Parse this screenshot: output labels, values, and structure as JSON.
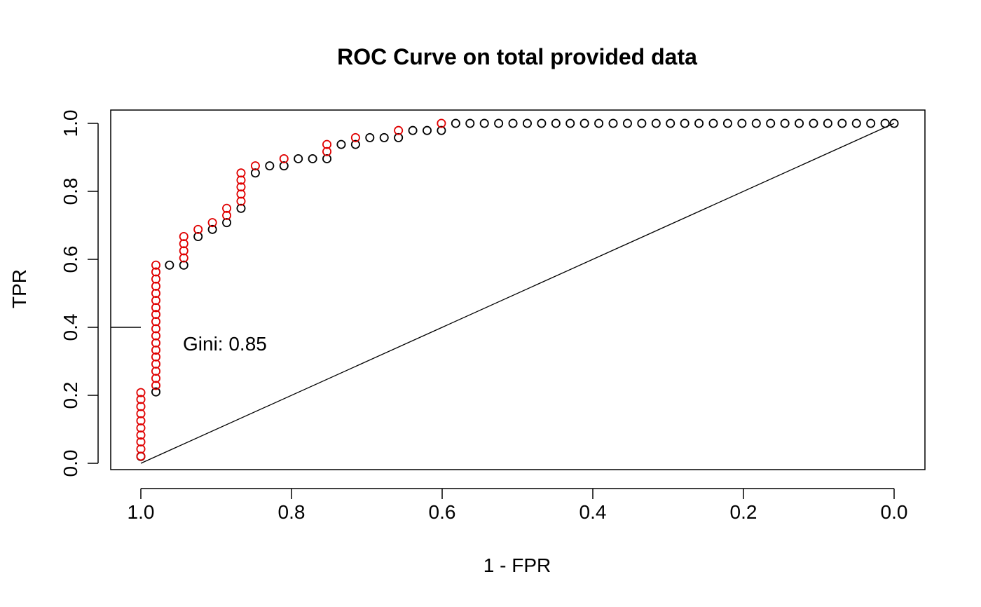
{
  "chart_data": {
    "type": "scatter",
    "title": "ROC Curve on total provided data",
    "xlabel": "1 - FPR",
    "ylabel": "TPR",
    "xlim": [
      1.0,
      0.0
    ],
    "ylim": [
      0.0,
      1.0
    ],
    "x_ticks": [
      "1.0",
      "0.8",
      "0.6",
      "0.4",
      "0.2",
      "0.0"
    ],
    "y_ticks": [
      "0.0",
      "0.2",
      "0.4",
      "0.6",
      "0.8",
      "1.0"
    ],
    "grid": false,
    "legend": "none",
    "annotation": "Gini: 0.85",
    "annotation_tick_at": 0.4,
    "colors": {
      "primary": "#000000",
      "highlight": "#e00000"
    },
    "diagonal": [
      [
        1.0,
        0.0
      ],
      [
        0.0,
        1.0
      ]
    ],
    "series": [
      {
        "color": "#000000",
        "points": [
          [
            1.0,
            0.02
          ],
          [
            0.98,
            0.21
          ],
          [
            0.962,
            0.583
          ],
          [
            0.943,
            0.583
          ],
          [
            0.924,
            0.667
          ],
          [
            0.905,
            0.688
          ],
          [
            0.886,
            0.708
          ],
          [
            0.867,
            0.75
          ],
          [
            0.848,
            0.854
          ],
          [
            0.829,
            0.875
          ],
          [
            0.81,
            0.875
          ],
          [
            0.791,
            0.896
          ],
          [
            0.772,
            0.896
          ],
          [
            0.753,
            0.896
          ],
          [
            0.734,
            0.938
          ],
          [
            0.715,
            0.938
          ],
          [
            0.696,
            0.958
          ],
          [
            0.677,
            0.958
          ],
          [
            0.658,
            0.958
          ],
          [
            0.639,
            0.979
          ],
          [
            0.62,
            0.979
          ],
          [
            0.601,
            0.979
          ],
          [
            0.582,
            1.0
          ],
          [
            0.563,
            1.0
          ],
          [
            0.544,
            1.0
          ],
          [
            0.525,
            1.0
          ],
          [
            0.506,
            1.0
          ],
          [
            0.487,
            1.0
          ],
          [
            0.468,
            1.0
          ],
          [
            0.449,
            1.0
          ],
          [
            0.43,
            1.0
          ],
          [
            0.411,
            1.0
          ],
          [
            0.392,
            1.0
          ],
          [
            0.373,
            1.0
          ],
          [
            0.354,
            1.0
          ],
          [
            0.335,
            1.0
          ],
          [
            0.316,
            1.0
          ],
          [
            0.297,
            1.0
          ],
          [
            0.278,
            1.0
          ],
          [
            0.259,
            1.0
          ],
          [
            0.24,
            1.0
          ],
          [
            0.221,
            1.0
          ],
          [
            0.202,
            1.0
          ],
          [
            0.183,
            1.0
          ],
          [
            0.164,
            1.0
          ],
          [
            0.145,
            1.0
          ],
          [
            0.126,
            1.0
          ],
          [
            0.107,
            1.0
          ],
          [
            0.088,
            1.0
          ],
          [
            0.069,
            1.0
          ],
          [
            0.05,
            1.0
          ],
          [
            0.031,
            1.0
          ],
          [
            0.012,
            1.0
          ],
          [
            0.0,
            1.0
          ]
        ]
      },
      {
        "color": "#e00000",
        "points": [
          [
            1.0,
            0.021
          ],
          [
            1.0,
            0.042
          ],
          [
            1.0,
            0.063
          ],
          [
            1.0,
            0.083
          ],
          [
            1.0,
            0.104
          ],
          [
            1.0,
            0.125
          ],
          [
            1.0,
            0.146
          ],
          [
            1.0,
            0.167
          ],
          [
            1.0,
            0.188
          ],
          [
            1.0,
            0.208
          ],
          [
            0.98,
            0.229
          ],
          [
            0.98,
            0.25
          ],
          [
            0.98,
            0.271
          ],
          [
            0.98,
            0.292
          ],
          [
            0.98,
            0.313
          ],
          [
            0.98,
            0.333
          ],
          [
            0.98,
            0.354
          ],
          [
            0.98,
            0.375
          ],
          [
            0.98,
            0.396
          ],
          [
            0.98,
            0.417
          ],
          [
            0.98,
            0.438
          ],
          [
            0.98,
            0.458
          ],
          [
            0.98,
            0.479
          ],
          [
            0.98,
            0.5
          ],
          [
            0.98,
            0.521
          ],
          [
            0.98,
            0.542
          ],
          [
            0.98,
            0.563
          ],
          [
            0.98,
            0.583
          ],
          [
            0.943,
            0.604
          ],
          [
            0.943,
            0.625
          ],
          [
            0.943,
            0.646
          ],
          [
            0.943,
            0.667
          ],
          [
            0.924,
            0.688
          ],
          [
            0.905,
            0.708
          ],
          [
            0.886,
            0.729
          ],
          [
            0.886,
            0.75
          ],
          [
            0.867,
            0.771
          ],
          [
            0.867,
            0.792
          ],
          [
            0.867,
            0.813
          ],
          [
            0.867,
            0.833
          ],
          [
            0.867,
            0.854
          ],
          [
            0.848,
            0.875
          ],
          [
            0.81,
            0.896
          ],
          [
            0.753,
            0.917
          ],
          [
            0.753,
            0.938
          ],
          [
            0.715,
            0.958
          ],
          [
            0.658,
            0.979
          ],
          [
            0.601,
            1.0
          ]
        ]
      }
    ]
  }
}
